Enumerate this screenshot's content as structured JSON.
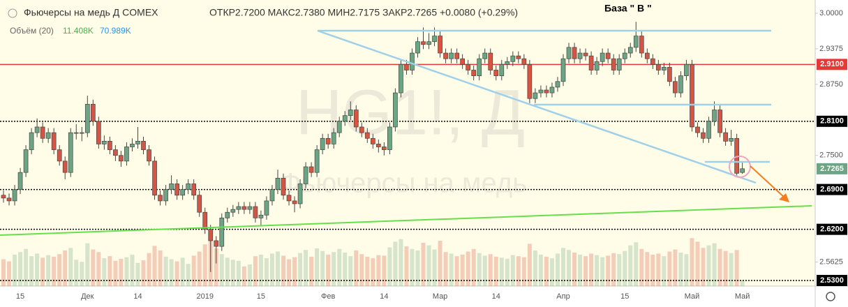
{
  "chart_data": {
    "type": "candlestick",
    "title": "Фьючерсы на медь  Д  COMEX",
    "subtitle": "ОТКР2.7200 МАКС2.7380 МИН2.7175 ЗАКР2.7265 +0.0080 (+0.29%)",
    "annotation": "База \" В \"",
    "watermark": "HG1!, Д",
    "watermark_name": "Фьючерсы на медь",
    "volume_legend": {
      "title": "Объём (20)",
      "value": "11.408K",
      "ma": "70.989K"
    },
    "up_color": "#6ba583",
    "down_color": "#d75442",
    "ylim": [
      2.5202,
      3.0233
    ],
    "yticks": [
      {
        "value": 3.0,
        "label": "3.0000"
      },
      {
        "value": 2.9375,
        "label": "2.9375"
      },
      {
        "value": 2.875,
        "label": "2.8750"
      },
      {
        "value": 2.75,
        "label": "2.7500"
      },
      {
        "value": 2.5625,
        "label": "2.5625"
      }
    ],
    "levels": [
      {
        "value": 2.91,
        "label": "2.9100",
        "color": "#e53935",
        "style": "solid"
      },
      {
        "value": 2.81,
        "label": "2.8100",
        "color": "#000000",
        "style": "dotted"
      },
      {
        "value": 2.69,
        "label": "2.6900",
        "color": "#000000",
        "style": "dotted"
      },
      {
        "value": 2.62,
        "label": "2.6200",
        "color": "#000000",
        "style": "dotted"
      },
      {
        "value": 2.53,
        "label": "2.5300",
        "color": "#000000",
        "style": "dotted"
      }
    ],
    "last_price": {
      "value": 2.7265,
      "label": "2.7265",
      "color": "#6ba583"
    },
    "volume_ylim": [
      0,
      115000
    ],
    "categories": [
      null,
      null,
      null,
      "15",
      null,
      null,
      null,
      null,
      null,
      null,
      null,
      null,
      null,
      null,
      null,
      "Дек",
      null,
      null,
      null,
      null,
      null,
      null,
      null,
      null,
      "14",
      null,
      null,
      null,
      null,
      null,
      null,
      null,
      null,
      null,
      null,
      null,
      "2019",
      null,
      null,
      null,
      null,
      null,
      null,
      null,
      null,
      null,
      "15",
      null,
      null,
      null,
      null,
      null,
      null,
      null,
      null,
      null,
      null,
      null,
      "Фев",
      null,
      null,
      null,
      null,
      null,
      null,
      null,
      null,
      null,
      "14",
      null,
      null,
      null,
      null,
      null,
      null,
      null,
      null,
      null,
      "Мар",
      null,
      null,
      null,
      null,
      null,
      null,
      null,
      null,
      null,
      "14",
      null,
      null,
      null,
      null,
      null,
      null,
      null,
      null,
      null,
      null,
      null,
      "Апр",
      null,
      null,
      null,
      null,
      null,
      null,
      null,
      null,
      null,
      null,
      "15",
      null,
      null,
      null,
      null,
      null,
      null,
      null,
      null,
      null,
      null,
      null,
      "Май",
      null,
      null,
      null,
      null,
      null,
      null,
      null,
      null,
      "Май"
    ],
    "ohlc": [
      [
        2.68,
        2.688,
        2.667,
        2.675
      ],
      [
        2.675,
        2.683,
        2.662,
        2.67
      ],
      [
        2.67,
        2.698,
        2.662,
        2.69
      ],
      [
        2.69,
        2.728,
        2.682,
        2.72
      ],
      [
        2.72,
        2.768,
        2.712,
        2.76
      ],
      [
        2.76,
        2.798,
        2.752,
        2.79
      ],
      [
        2.79,
        2.815,
        2.782,
        2.8
      ],
      [
        2.8,
        2.808,
        2.772,
        2.78
      ],
      [
        2.78,
        2.798,
        2.772,
        2.79
      ],
      [
        2.79,
        2.798,
        2.752,
        2.76
      ],
      [
        2.76,
        2.768,
        2.732,
        2.74
      ],
      [
        2.74,
        2.748,
        2.708,
        2.72
      ],
      [
        2.72,
        2.798,
        2.712,
        2.79
      ],
      [
        2.79,
        2.805,
        2.778,
        2.79
      ],
      [
        2.79,
        2.8,
        2.775,
        2.79
      ],
      [
        2.79,
        2.855,
        2.782,
        2.84
      ],
      [
        2.84,
        2.848,
        2.802,
        2.81
      ],
      [
        2.81,
        2.818,
        2.762,
        2.77
      ],
      [
        2.77,
        2.785,
        2.76,
        2.775
      ],
      [
        2.775,
        2.783,
        2.752,
        2.76
      ],
      [
        2.76,
        2.768,
        2.74,
        2.75
      ],
      [
        2.75,
        2.758,
        2.73,
        2.74
      ],
      [
        2.74,
        2.773,
        2.732,
        2.765
      ],
      [
        2.765,
        2.78,
        2.757,
        2.77
      ],
      [
        2.77,
        2.8,
        2.762,
        2.775
      ],
      [
        2.775,
        2.783,
        2.752,
        2.76
      ],
      [
        2.76,
        2.768,
        2.732,
        2.74
      ],
      [
        2.74,
        2.748,
        2.672,
        2.68
      ],
      [
        2.68,
        2.688,
        2.662,
        2.67
      ],
      [
        2.67,
        2.698,
        2.662,
        2.69
      ],
      [
        2.69,
        2.715,
        2.682,
        2.7
      ],
      [
        2.7,
        2.708,
        2.672,
        2.68
      ],
      [
        2.68,
        2.698,
        2.672,
        2.69
      ],
      [
        2.69,
        2.708,
        2.682,
        2.7
      ],
      [
        2.7,
        2.708,
        2.672,
        2.68
      ],
      [
        2.68,
        2.688,
        2.642,
        2.65
      ],
      [
        2.65,
        2.658,
        2.612,
        2.62
      ],
      [
        2.62,
        2.628,
        2.545,
        2.6
      ],
      [
        2.6,
        2.608,
        2.56,
        2.59
      ],
      [
        2.59,
        2.648,
        2.582,
        2.64
      ],
      [
        2.64,
        2.658,
        2.632,
        2.65
      ],
      [
        2.65,
        2.663,
        2.642,
        2.655
      ],
      [
        2.655,
        2.668,
        2.647,
        2.66
      ],
      [
        2.66,
        2.668,
        2.647,
        2.655
      ],
      [
        2.655,
        2.668,
        2.647,
        2.66
      ],
      [
        2.66,
        2.668,
        2.632,
        2.64
      ],
      [
        2.64,
        2.653,
        2.625,
        2.645
      ],
      [
        2.645,
        2.678,
        2.637,
        2.67
      ],
      [
        2.67,
        2.698,
        2.662,
        2.69
      ],
      [
        2.69,
        2.725,
        2.682,
        2.71
      ],
      [
        2.71,
        2.718,
        2.672,
        2.68
      ],
      [
        2.68,
        2.688,
        2.662,
        2.67
      ],
      [
        2.67,
        2.678,
        2.65,
        2.665
      ],
      [
        2.665,
        2.708,
        2.657,
        2.7
      ],
      [
        2.7,
        2.738,
        2.692,
        2.73
      ],
      [
        2.73,
        2.738,
        2.712,
        2.72
      ],
      [
        2.72,
        2.768,
        2.712,
        2.76
      ],
      [
        2.76,
        2.788,
        2.752,
        2.78
      ],
      [
        2.78,
        2.788,
        2.762,
        2.77
      ],
      [
        2.77,
        2.798,
        2.762,
        2.79
      ],
      [
        2.79,
        2.818,
        2.782,
        2.81
      ],
      [
        2.81,
        2.828,
        2.802,
        2.82
      ],
      [
        2.82,
        2.845,
        2.812,
        2.83
      ],
      [
        2.83,
        2.838,
        2.792,
        2.8
      ],
      [
        2.8,
        2.808,
        2.782,
        2.79
      ],
      [
        2.79,
        2.798,
        2.772,
        2.78
      ],
      [
        2.78,
        2.788,
        2.762,
        2.77
      ],
      [
        2.77,
        2.778,
        2.755,
        2.765
      ],
      [
        2.765,
        2.773,
        2.75,
        2.76
      ],
      [
        2.76,
        2.808,
        2.752,
        2.8
      ],
      [
        2.8,
        2.868,
        2.792,
        2.86
      ],
      [
        2.86,
        2.918,
        2.852,
        2.91
      ],
      [
        2.91,
        2.918,
        2.892,
        2.9
      ],
      [
        2.9,
        2.938,
        2.892,
        2.93
      ],
      [
        2.93,
        2.958,
        2.922,
        2.95
      ],
      [
        2.95,
        2.975,
        2.937,
        2.945
      ],
      [
        2.945,
        2.965,
        2.937,
        2.95
      ],
      [
        2.95,
        2.975,
        2.942,
        2.96
      ],
      [
        2.96,
        2.968,
        2.922,
        2.93
      ],
      [
        2.93,
        2.938,
        2.912,
        2.92
      ],
      [
        2.92,
        2.938,
        2.912,
        2.93
      ],
      [
        2.93,
        2.938,
        2.912,
        2.92
      ],
      [
        2.92,
        2.928,
        2.902,
        2.91
      ],
      [
        2.91,
        2.918,
        2.892,
        2.9
      ],
      [
        2.9,
        2.908,
        2.882,
        2.89
      ],
      [
        2.89,
        2.928,
        2.882,
        2.92
      ],
      [
        2.92,
        2.938,
        2.912,
        2.93
      ],
      [
        2.93,
        2.938,
        2.892,
        2.9
      ],
      [
        2.9,
        2.908,
        2.882,
        2.89
      ],
      [
        2.89,
        2.918,
        2.882,
        2.91
      ],
      [
        2.91,
        2.923,
        2.902,
        2.915
      ],
      [
        2.915,
        2.933,
        2.907,
        2.925
      ],
      [
        2.925,
        2.933,
        2.912,
        2.92
      ],
      [
        2.92,
        2.928,
        2.902,
        2.91
      ],
      [
        2.91,
        2.918,
        2.842,
        2.85
      ],
      [
        2.85,
        2.868,
        2.842,
        2.86
      ],
      [
        2.86,
        2.873,
        2.852,
        2.865
      ],
      [
        2.865,
        2.873,
        2.852,
        2.86
      ],
      [
        2.86,
        2.878,
        2.852,
        2.87
      ],
      [
        2.87,
        2.888,
        2.862,
        2.88
      ],
      [
        2.88,
        2.928,
        2.872,
        2.92
      ],
      [
        2.92,
        2.948,
        2.912,
        2.94
      ],
      [
        2.94,
        2.948,
        2.912,
        2.92
      ],
      [
        2.92,
        2.938,
        2.912,
        2.93
      ],
      [
        2.93,
        2.938,
        2.917,
        2.925
      ],
      [
        2.925,
        2.933,
        2.892,
        2.9
      ],
      [
        2.9,
        2.923,
        2.892,
        2.915
      ],
      [
        2.915,
        2.938,
        2.907,
        2.93
      ],
      [
        2.93,
        2.938,
        2.912,
        2.92
      ],
      [
        2.92,
        2.928,
        2.892,
        2.9
      ],
      [
        2.9,
        2.928,
        2.892,
        2.92
      ],
      [
        2.92,
        2.938,
        2.912,
        2.93
      ],
      [
        2.93,
        2.948,
        2.922,
        2.94
      ],
      [
        2.94,
        2.985,
        2.932,
        2.96
      ],
      [
        2.96,
        2.968,
        2.922,
        2.93
      ],
      [
        2.93,
        2.938,
        2.912,
        2.92
      ],
      [
        2.92,
        2.928,
        2.902,
        2.91
      ],
      [
        2.91,
        2.918,
        2.892,
        2.9
      ],
      [
        2.9,
        2.913,
        2.892,
        2.905
      ],
      [
        2.905,
        2.913,
        2.872,
        2.88
      ],
      [
        2.88,
        2.888,
        2.852,
        2.86
      ],
      [
        2.86,
        2.898,
        2.852,
        2.89
      ],
      [
        2.89,
        2.918,
        2.882,
        2.91
      ],
      [
        2.91,
        2.918,
        2.792,
        2.8
      ],
      [
        2.8,
        2.808,
        2.782,
        2.79
      ],
      [
        2.79,
        2.798,
        2.772,
        2.78
      ],
      [
        2.78,
        2.818,
        2.772,
        2.81
      ],
      [
        2.81,
        2.845,
        2.802,
        2.83
      ],
      [
        2.83,
        2.838,
        2.782,
        2.79
      ],
      [
        2.79,
        2.798,
        2.767,
        2.775
      ],
      [
        2.775,
        2.795,
        2.767,
        2.78
      ],
      [
        2.78,
        2.788,
        2.712,
        2.7185
      ],
      [
        2.72,
        2.738,
        2.7175,
        2.7265
      ]
    ],
    "volume": [
      52000,
      48000,
      61000,
      66000,
      72000,
      58000,
      63000,
      55000,
      60000,
      57000,
      62000,
      69000,
      74000,
      51000,
      47000,
      83000,
      71000,
      66000,
      54000,
      58000,
      49000,
      53000,
      56000,
      61000,
      45000,
      50000,
      64000,
      78000,
      69000,
      57000,
      52000,
      48000,
      55000,
      43000,
      59000,
      67000,
      81000,
      88000,
      73000,
      62000,
      55000,
      51000,
      49000,
      38000,
      42000,
      58000,
      61000,
      54000,
      63000,
      67000,
      59000,
      52000,
      56000,
      64000,
      70000,
      57000,
      73000,
      68000,
      61000,
      66000,
      72000,
      65000,
      58000,
      69000,
      62000,
      57000,
      54000,
      60000,
      59000,
      75000,
      86000,
      91000,
      77000,
      72000,
      69000,
      84000,
      79000,
      71000,
      88000,
      66000,
      63000,
      58000,
      61000,
      67000,
      72000,
      64000,
      59000,
      62000,
      57000,
      55000,
      53000,
      60000,
      58000,
      56000,
      82000,
      69000,
      61000,
      57000,
      54000,
      63000,
      74000,
      70000,
      65000,
      61000,
      58000,
      63000,
      60000,
      56000,
      59000,
      64000,
      62000,
      68000,
      79000,
      85000,
      72000,
      66000,
      61000,
      63000,
      58000,
      67000,
      71000,
      65000,
      62000,
      93000,
      86000,
      74000,
      79000,
      83000,
      72000,
      68000,
      64000,
      70000,
      11408
    ]
  }
}
